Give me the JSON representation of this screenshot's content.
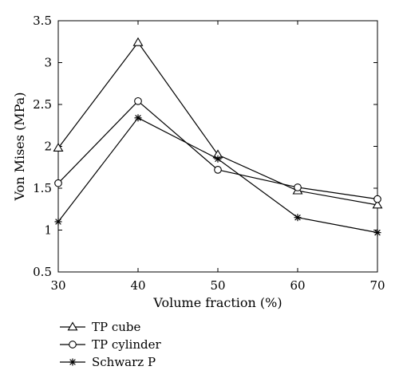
{
  "chart_data": {
    "type": "line",
    "xlabel": "Volume fraction (%)",
    "ylabel": "Von Mises (MPa)",
    "x": [
      30,
      40,
      50,
      60,
      70
    ],
    "xlim": [
      30,
      70
    ],
    "ylim": [
      0.5,
      3.5
    ],
    "xticks": [
      "30",
      "40",
      "50",
      "60",
      "70"
    ],
    "yticks": [
      "0.5",
      "1",
      "1.5",
      "2",
      "2.5",
      "3",
      "3.5"
    ],
    "grid": false,
    "legend_position": "bottom-left, below plot",
    "series": [
      {
        "name": "TP cube",
        "marker": "triangle",
        "values": [
          1.98,
          3.24,
          1.9,
          1.47,
          1.3
        ]
      },
      {
        "name": "TP cylinder",
        "marker": "circle",
        "values": [
          1.56,
          2.54,
          1.72,
          1.51,
          1.37
        ]
      },
      {
        "name": "Schwarz P",
        "marker": "asterisk",
        "values": [
          1.1,
          2.34,
          1.85,
          1.15,
          0.97
        ]
      }
    ],
    "colors": {
      "line": "#000000",
      "background": "#ffffff"
    }
  }
}
